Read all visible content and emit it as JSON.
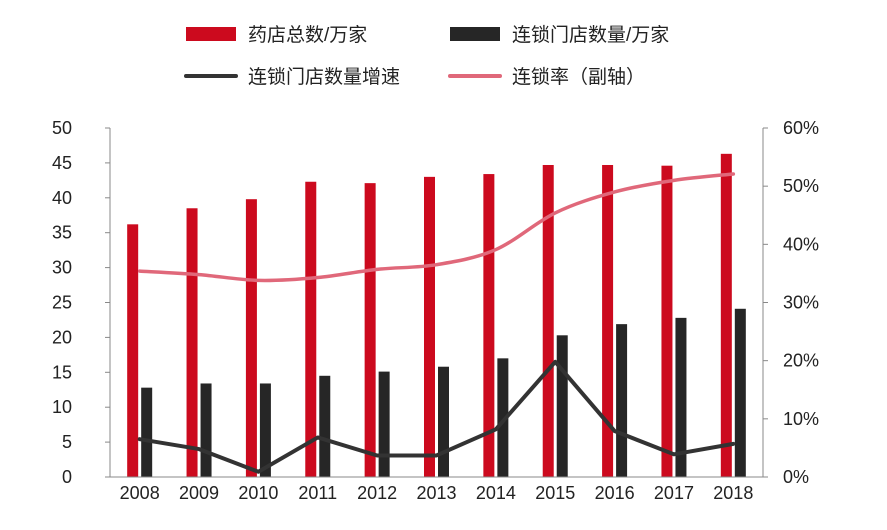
{
  "chart_data": {
    "type": "bar",
    "categories": [
      "2008",
      "2009",
      "2010",
      "2011",
      "2012",
      "2013",
      "2014",
      "2015",
      "2016",
      "2017",
      "2018"
    ],
    "series": [
      {
        "name": "药店总数/万家",
        "kind": "bar",
        "axis": "left",
        "color": "#cc0a1e",
        "values": [
          36.2,
          38.5,
          39.8,
          42.3,
          42.1,
          43.0,
          43.4,
          44.7,
          44.7,
          44.6,
          46.3
        ]
      },
      {
        "name": "连锁门店数量/万家",
        "kind": "bar",
        "axis": "left",
        "color": "#262626",
        "values": [
          12.8,
          13.4,
          13.4,
          14.5,
          15.1,
          15.8,
          17.0,
          20.3,
          21.9,
          22.8,
          24.1
        ]
      },
      {
        "name": "连锁门店数量增速",
        "kind": "line",
        "axis": "right",
        "color": "#333333",
        "values": [
          0.065,
          0.048,
          0.009,
          0.068,
          0.037,
          0.037,
          0.082,
          0.198,
          0.079,
          0.039,
          0.057
        ]
      },
      {
        "name": "连锁率（副轴）",
        "kind": "line",
        "axis": "right",
        "color": "#e0687a",
        "values": [
          0.354,
          0.348,
          0.338,
          0.343,
          0.357,
          0.365,
          0.391,
          0.454,
          0.49,
          0.51,
          0.521
        ]
      }
    ],
    "left_axis": {
      "ylim": [
        0,
        50
      ],
      "ticks": [
        "0",
        "5",
        "10",
        "15",
        "20",
        "25",
        "30",
        "35",
        "40",
        "45",
        "50"
      ]
    },
    "right_axis": {
      "ylim": [
        0,
        0.6
      ],
      "ticks": [
        "0%",
        "10%",
        "20%",
        "30%",
        "40%",
        "50%",
        "60%"
      ]
    },
    "legend": {
      "placement": "top"
    },
    "grid": false
  }
}
